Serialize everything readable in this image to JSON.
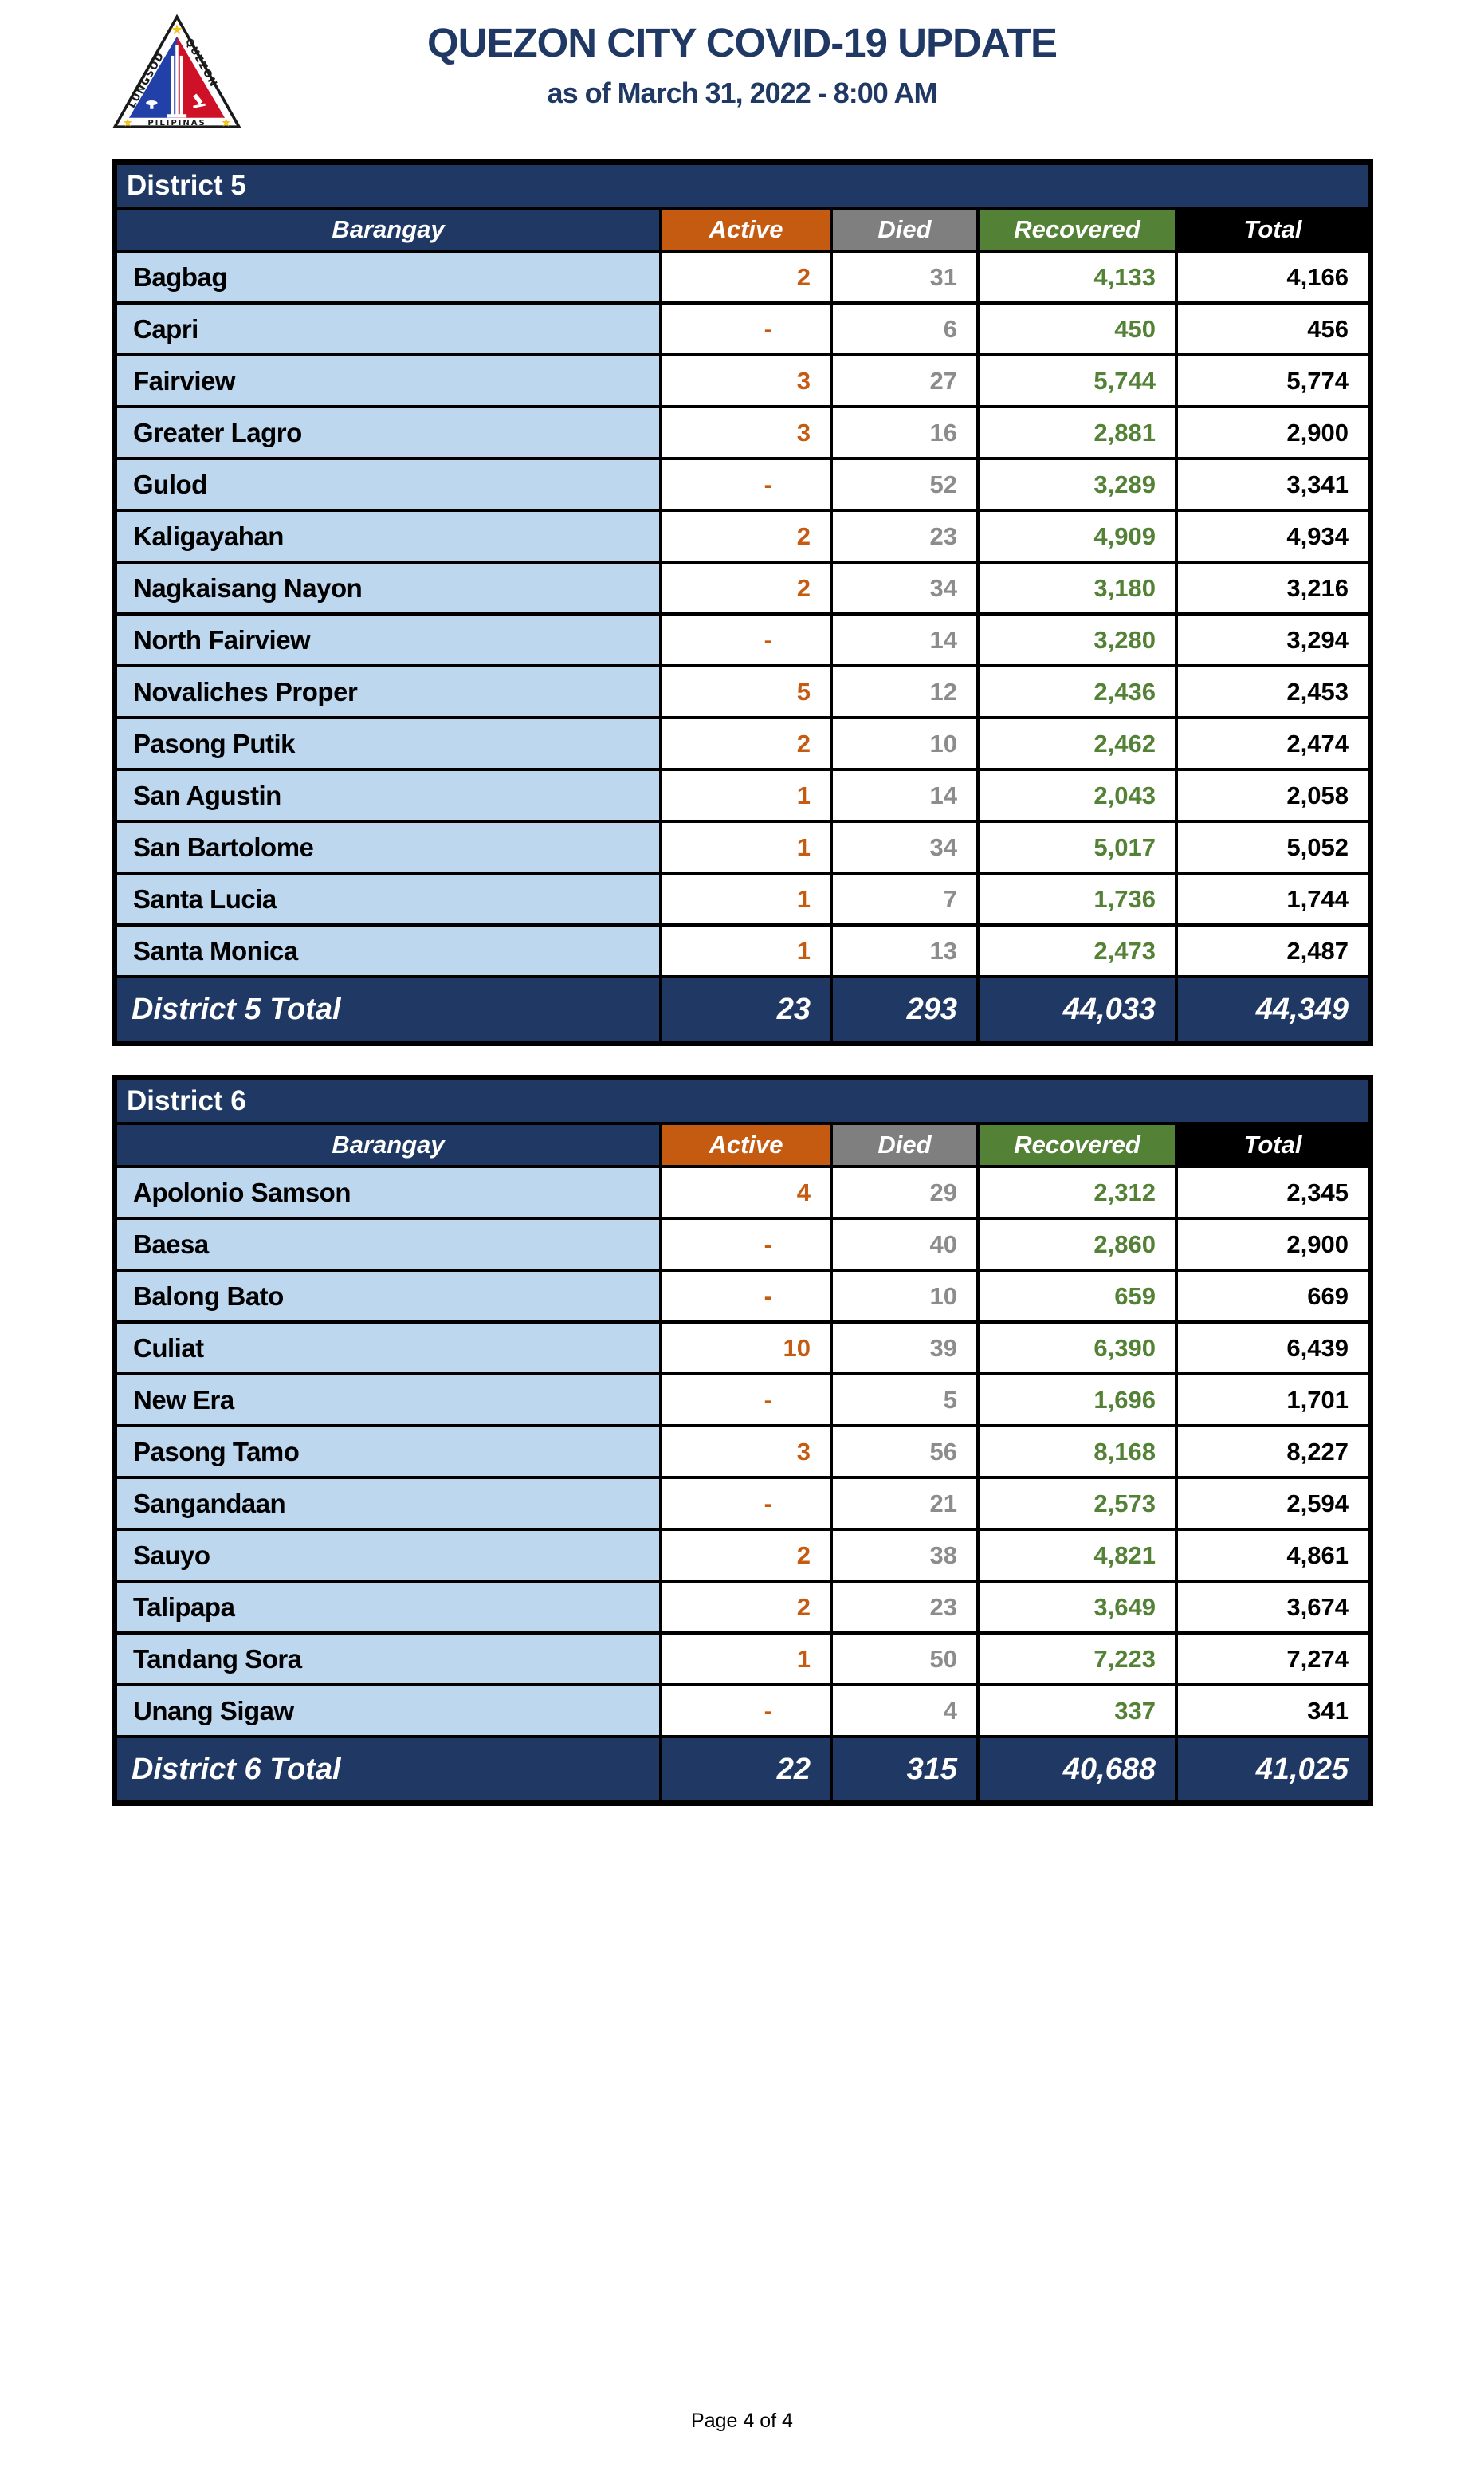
{
  "page": {
    "title": "QUEZON CITY COVID-19 UPDATE",
    "subtitle": "as of March 31, 2022 - 8:00 AM",
    "footer": "Page 4 of 4"
  },
  "logo": {
    "text_left": "LUNGSOD",
    "text_right": "QUEZON",
    "text_bottom": "PILIPINAS"
  },
  "columns": [
    "Barangay",
    "Active",
    "Died",
    "Recovered",
    "Total"
  ],
  "colors": {
    "navy": "#1f3864",
    "title_navy": "#1f3864",
    "orange": "#c55a11",
    "gray": "#7f7f7f",
    "green": "#538135",
    "light_blue": "#bdd7ee",
    "died_number_gray": "#8c8c8c",
    "logo_blue": "#2140a8",
    "logo_red": "#ce1126",
    "logo_gold": "#f2c41d"
  },
  "tables": [
    {
      "district": "District 5",
      "rows": [
        {
          "barangay": "Bagbag",
          "active": "2",
          "died": "31",
          "recovered": "4,133",
          "total": "4,166"
        },
        {
          "barangay": "Capri",
          "active": "-",
          "died": "6",
          "recovered": "450",
          "total": "456"
        },
        {
          "barangay": "Fairview",
          "active": "3",
          "died": "27",
          "recovered": "5,744",
          "total": "5,774"
        },
        {
          "barangay": "Greater Lagro",
          "active": "3",
          "died": "16",
          "recovered": "2,881",
          "total": "2,900"
        },
        {
          "barangay": "Gulod",
          "active": "-",
          "died": "52",
          "recovered": "3,289",
          "total": "3,341"
        },
        {
          "barangay": "Kaligayahan",
          "active": "2",
          "died": "23",
          "recovered": "4,909",
          "total": "4,934"
        },
        {
          "barangay": "Nagkaisang Nayon",
          "active": "2",
          "died": "34",
          "recovered": "3,180",
          "total": "3,216"
        },
        {
          "barangay": "North Fairview",
          "active": "-",
          "died": "14",
          "recovered": "3,280",
          "total": "3,294"
        },
        {
          "barangay": "Novaliches Proper",
          "active": "5",
          "died": "12",
          "recovered": "2,436",
          "total": "2,453"
        },
        {
          "barangay": "Pasong Putik",
          "active": "2",
          "died": "10",
          "recovered": "2,462",
          "total": "2,474"
        },
        {
          "barangay": "San Agustin",
          "active": "1",
          "died": "14",
          "recovered": "2,043",
          "total": "2,058"
        },
        {
          "barangay": "San Bartolome",
          "active": "1",
          "died": "34",
          "recovered": "5,017",
          "total": "5,052"
        },
        {
          "barangay": "Santa Lucia",
          "active": "1",
          "died": "7",
          "recovered": "1,736",
          "total": "1,744"
        },
        {
          "barangay": "Santa Monica",
          "active": "1",
          "died": "13",
          "recovered": "2,473",
          "total": "2,487"
        }
      ],
      "total": {
        "label": "District 5 Total",
        "active": "23",
        "died": "293",
        "recovered": "44,033",
        "total": "44,349"
      }
    },
    {
      "district": "District 6",
      "rows": [
        {
          "barangay": "Apolonio Samson",
          "active": "4",
          "died": "29",
          "recovered": "2,312",
          "total": "2,345"
        },
        {
          "barangay": "Baesa",
          "active": "-",
          "died": "40",
          "recovered": "2,860",
          "total": "2,900"
        },
        {
          "barangay": "Balong Bato",
          "active": "-",
          "died": "10",
          "recovered": "659",
          "total": "669"
        },
        {
          "barangay": "Culiat",
          "active": "10",
          "died": "39",
          "recovered": "6,390",
          "total": "6,439"
        },
        {
          "barangay": "New Era",
          "active": "-",
          "died": "5",
          "recovered": "1,696",
          "total": "1,701"
        },
        {
          "barangay": "Pasong Tamo",
          "active": "3",
          "died": "56",
          "recovered": "8,168",
          "total": "8,227"
        },
        {
          "barangay": "Sangandaan",
          "active": "-",
          "died": "21",
          "recovered": "2,573",
          "total": "2,594"
        },
        {
          "barangay": "Sauyo",
          "active": "2",
          "died": "38",
          "recovered": "4,821",
          "total": "4,861"
        },
        {
          "barangay": "Talipapa",
          "active": "2",
          "died": "23",
          "recovered": "3,649",
          "total": "3,674"
        },
        {
          "barangay": "Tandang Sora",
          "active": "1",
          "died": "50",
          "recovered": "7,223",
          "total": "7,274"
        },
        {
          "barangay": "Unang Sigaw",
          "active": "-",
          "died": "4",
          "recovered": "337",
          "total": "341"
        }
      ],
      "total": {
        "label": "District 6 Total",
        "active": "22",
        "died": "315",
        "recovered": "40,688",
        "total": "41,025"
      }
    }
  ]
}
